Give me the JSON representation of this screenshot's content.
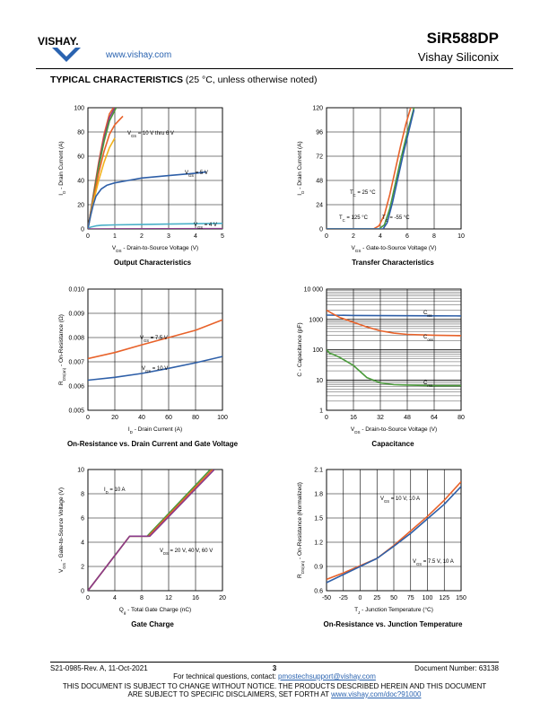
{
  "header": {
    "logo_text": "VISHAY.",
    "url": "www.vishay.com",
    "part_number": "SiR588DP",
    "company": "Vishay Siliconix",
    "section_bold": "TYPICAL CHARACTERISTICS",
    "section_rest": "(25 °C, unless otherwise noted)"
  },
  "charts": {
    "c1": {
      "title": "Output Characteristics",
      "xlabel": "V_DS - Drain-to-Source Voltage (V)",
      "ylabel": "I_D - Drain Current (A)",
      "xticks": [
        "0",
        "1",
        "2",
        "3",
        "4",
        "5"
      ],
      "yticks": [
        "0",
        "20",
        "40",
        "60",
        "80",
        "100"
      ],
      "annotations": [
        "V_GS = 10 V thru 6 V",
        "V_GS = 5 V",
        "V_GS = 4 V"
      ]
    },
    "c2": {
      "title": "Transfer Characteristics",
      "xlabel": "V_GS - Gate-to-Source Voltage (V)",
      "ylabel": "I_D - Drain Current (A)",
      "xticks": [
        "0",
        "2",
        "4",
        "6",
        "8",
        "10"
      ],
      "yticks": [
        "0",
        "24",
        "48",
        "72",
        "96",
        "120"
      ],
      "annotations": [
        "T_C = 25 °C",
        "T_C = 125 °C",
        "T_C = -55 °C"
      ]
    },
    "c3": {
      "title": "On-Resistance vs. Drain Current and Gate Voltage",
      "xlabel": "I_D - Drain Current (A)",
      "ylabel": "R_DS(on) - On-Resistance (Ω)",
      "xticks": [
        "0",
        "20",
        "40",
        "60",
        "80",
        "100"
      ],
      "yticks": [
        "0.005",
        "0.006",
        "0.007",
        "0.008",
        "0.009",
        "0.010"
      ],
      "annotations": [
        "V_GS = 7.5 V",
        "V_GS = 10 V"
      ]
    },
    "c4": {
      "title": "Capacitance",
      "xlabel": "V_DS - Drain-to-Source Voltage (V)",
      "ylabel": "C - Capacitance (pF)",
      "xticks": [
        "0",
        "16",
        "32",
        "48",
        "64",
        "80"
      ],
      "yticks": [
        "1",
        "10",
        "100",
        "1000",
        "10 000"
      ],
      "annotations": [
        "C_iss",
        "C_oss",
        "C_rss"
      ]
    },
    "c5": {
      "title": "Gate Charge",
      "xlabel": "Q_g - Total Gate Charge (nC)",
      "ylabel": "V_GS - Gate-to-Source Voltage (V)",
      "xticks": [
        "0",
        "4",
        "8",
        "12",
        "16",
        "20"
      ],
      "yticks": [
        "0",
        "2",
        "4",
        "6",
        "8",
        "10"
      ],
      "annotations": [
        "I_D = 10 A",
        "V_DS = 20 V, 40 V, 60 V"
      ]
    },
    "c6": {
      "title": "On-Resistance vs. Junction Temperature",
      "xlabel": "T_J - Junction Temperature (°C)",
      "ylabel": "R_DS(on) - On-Resistance (Normalized)",
      "xticks": [
        "-50",
        "-25",
        "0",
        "25",
        "50",
        "75",
        "100",
        "125",
        "150"
      ],
      "yticks": [
        "0.6",
        "0.9",
        "1.2",
        "1.5",
        "1.8",
        "2.1"
      ],
      "annotations": [
        "V_GS = 10 V, 10 A",
        "V_GS = 7.5 V, 10 A"
      ]
    }
  },
  "chart_data": [
    {
      "type": "line",
      "title": "Output Characteristics",
      "xlabel": "V_DS - Drain-to-Source Voltage (V)",
      "ylabel": "I_D - Drain Current (A)",
      "xlim": [
        0,
        5
      ],
      "ylim": [
        0,
        100
      ],
      "series": [
        {
          "name": "V_GS = 10 V",
          "color": "#e8622a",
          "x": [
            0,
            0.2,
            0.4,
            0.6,
            0.8,
            0.95
          ],
          "y": [
            0,
            28,
            55,
            78,
            95,
            100
          ]
        },
        {
          "name": "V_GS = 9 V",
          "color": "#8a3a8a",
          "x": [
            0,
            0.2,
            0.4,
            0.6,
            0.8,
            1.0
          ],
          "y": [
            0,
            27,
            53,
            75,
            92,
            100
          ]
        },
        {
          "name": "V_GS = 8 V",
          "color": "#4a9a3a",
          "x": [
            0,
            0.2,
            0.4,
            0.6,
            0.8,
            1.05
          ],
          "y": [
            0,
            26,
            51,
            72,
            89,
            100
          ]
        },
        {
          "name": "V_GS = 7 V",
          "color": "#e8622a",
          "x": [
            0,
            0.2,
            0.4,
            0.6,
            0.8,
            1.0,
            1.3
          ],
          "y": [
            0,
            24,
            46,
            64,
            78,
            86,
            93
          ]
        },
        {
          "name": "V_GS = 6 V",
          "color": "#f2b21a",
          "x": [
            0,
            0.2,
            0.4,
            0.6,
            0.8,
            1.0
          ],
          "y": [
            0,
            22,
            40,
            55,
            67,
            75
          ]
        },
        {
          "name": "V_GS = 5 V",
          "color": "#2e5fa8",
          "x": [
            0,
            0.1,
            0.2,
            0.3,
            0.5,
            0.7,
            1.0,
            1.5,
            2,
            3,
            4,
            4.4
          ],
          "y": [
            0,
            11,
            20,
            27,
            33,
            36,
            38,
            40,
            42,
            44,
            46,
            47
          ]
        },
        {
          "name": "V_GS = 4 V",
          "color": "#4ab0c8",
          "x": [
            0,
            0.1,
            0.3,
            0.5,
            1,
            2,
            3,
            4,
            5
          ],
          "y": [
            0,
            1.5,
            2.5,
            3,
            3.3,
            3.6,
            4,
            4.3,
            4.6
          ]
        },
        {
          "name": "V_GS = 3 V",
          "color": "#8a3a8a",
          "x": [
            0,
            5
          ],
          "y": [
            0,
            0.2
          ]
        }
      ]
    },
    {
      "type": "line",
      "title": "Transfer Characteristics",
      "xlabel": "V_GS - Gate-to-Source Voltage (V)",
      "ylabel": "I_D - Drain Current (A)",
      "xlim": [
        0,
        10
      ],
      "ylim": [
        0,
        120
      ],
      "series": [
        {
          "name": "T_C = 125 °C",
          "color": "#e8622a",
          "x": [
            0,
            3.5,
            3.9,
            4.3,
            4.7,
            5.1,
            5.5,
            5.9,
            6.3
          ],
          "y": [
            0,
            0,
            3,
            14,
            34,
            58,
            82,
            104,
            122
          ]
        },
        {
          "name": "T_C = 25 °C",
          "color": "#4a9a3a",
          "x": [
            0,
            3.9,
            4.3,
            4.7,
            5.1,
            5.5,
            5.9,
            6.3,
            6.5
          ],
          "y": [
            0,
            0,
            4,
            20,
            44,
            68,
            90,
            110,
            120
          ]
        },
        {
          "name": "T_C = -55 °C",
          "color": "#2e5fa8",
          "x": [
            0,
            4.2,
            4.5,
            4.9,
            5.3,
            5.7,
            6.1,
            6.5
          ],
          "y": [
            0,
            0,
            6,
            26,
            50,
            74,
            96,
            118
          ]
        }
      ]
    },
    {
      "type": "line",
      "title": "On-Resistance vs. Drain Current and Gate Voltage",
      "xlabel": "I_D - Drain Current (A)",
      "ylabel": "R_DS(on) - On-Resistance (Ω)",
      "xlim": [
        0,
        100
      ],
      "ylim": [
        0.005,
        0.01
      ],
      "series": [
        {
          "name": "V_GS = 7.5 V",
          "color": "#e8622a",
          "x": [
            0,
            20,
            40,
            60,
            80,
            100
          ],
          "y": [
            0.00713,
            0.00738,
            0.0077,
            0.008,
            0.0083,
            0.00873
          ]
        },
        {
          "name": "V_GS = 10 V",
          "color": "#2e5fa8",
          "x": [
            0,
            20,
            40,
            60,
            80,
            100
          ],
          "y": [
            0.00624,
            0.00636,
            0.00652,
            0.00673,
            0.00696,
            0.00722
          ]
        }
      ]
    },
    {
      "type": "line",
      "title": "Capacitance",
      "xlabel": "V_DS - Drain-to-Source Voltage (V)",
      "ylabel": "C - Capacitance (pF)",
      "xlim": [
        0,
        80
      ],
      "ylim": [
        1,
        10000
      ],
      "yscale": "log",
      "series": [
        {
          "name": "C_iss",
          "color": "#2e5fa8",
          "x": [
            0,
            16,
            32,
            48,
            64,
            80
          ],
          "y": [
            1380,
            1350,
            1330,
            1320,
            1310,
            1300
          ]
        },
        {
          "name": "C_oss",
          "color": "#e8622a",
          "x": [
            0,
            4,
            8,
            16,
            24,
            32,
            40,
            48,
            64,
            80
          ],
          "y": [
            2000,
            1500,
            1150,
            800,
            560,
            420,
            350,
            320,
            300,
            290
          ]
        },
        {
          "name": "C_rss",
          "color": "#4a9a3a",
          "x": [
            0,
            2,
            4,
            8,
            16,
            24,
            32,
            40,
            48,
            64,
            80
          ],
          "y": [
            100,
            75,
            70,
            55,
            30,
            12,
            8,
            7,
            6.8,
            6.5,
            6.5
          ]
        }
      ]
    },
    {
      "type": "line",
      "title": "Gate Charge",
      "xlabel": "Q_g - Total Gate Charge (nC)",
      "ylabel": "V_GS - Gate-to-Source Voltage (V)",
      "xlim": [
        0,
        20
      ],
      "ylim": [
        0,
        10
      ],
      "series": [
        {
          "name": "V_DS = 20 V",
          "color": "#4a9a3a",
          "x": [
            0,
            6.2,
            8.8,
            18.2
          ],
          "y": [
            0,
            4.5,
            4.5,
            10
          ]
        },
        {
          "name": "V_DS = 40 V",
          "color": "#e8622a",
          "x": [
            0,
            6.2,
            9.0,
            18.5
          ],
          "y": [
            0,
            4.5,
            4.5,
            10
          ]
        },
        {
          "name": "V_DS = 60 V",
          "color": "#8a3a8a",
          "x": [
            0,
            6.2,
            9.2,
            18.8
          ],
          "y": [
            0,
            4.5,
            4.5,
            10
          ]
        }
      ]
    },
    {
      "type": "line",
      "title": "On-Resistance vs. Junction Temperature",
      "xlabel": "T_J - Junction Temperature (°C)",
      "ylabel": "R_DS(on) - On-Resistance (Normalized)",
      "xlim": [
        -50,
        150
      ],
      "ylim": [
        0.6,
        2.1
      ],
      "series": [
        {
          "name": "V_GS = 10 V, 10 A",
          "color": "#e8622a",
          "x": [
            -50,
            -25,
            0,
            25,
            50,
            75,
            100,
            125,
            150
          ],
          "y": [
            0.74,
            0.82,
            0.91,
            1.0,
            1.16,
            1.34,
            1.52,
            1.72,
            1.95
          ]
        },
        {
          "name": "V_GS = 7.5 V, 10 A",
          "color": "#2e5fa8",
          "x": [
            -50,
            -25,
            0,
            25,
            50,
            75,
            100,
            125,
            150
          ],
          "y": [
            0.7,
            0.8,
            0.9,
            1.0,
            1.15,
            1.31,
            1.49,
            1.67,
            1.89
          ]
        }
      ]
    }
  ],
  "footer": {
    "doc_rev": "S21-0985-Rev. A, 11-Oct-2021",
    "page_number": "3",
    "doc_number": "Document Number: 63138",
    "tech_prefix": "For technical questions, contact: ",
    "tech_email": "pmostechsupport@vishay.com",
    "disclaimer_line1": "THIS DOCUMENT IS SUBJECT TO CHANGE WITHOUT NOTICE. THE PRODUCTS DESCRIBED HEREIN AND THIS DOCUMENT",
    "disclaimer_line2_prefix": "ARE SUBJECT TO SPECIFIC DISCLAIMERS, SET FORTH AT ",
    "disclaimer_link": "www.vishay.com/doc?91000"
  }
}
